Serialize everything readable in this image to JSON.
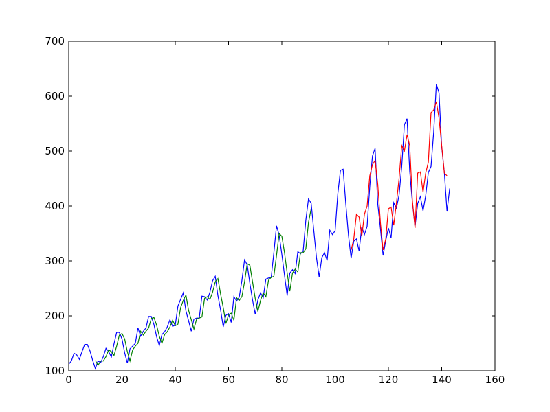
{
  "chart_data": {
    "type": "line",
    "xlim": [
      0,
      160
    ],
    "xticks": [
      0,
      20,
      40,
      60,
      80,
      100,
      120,
      140,
      160
    ],
    "ylim": [
      100,
      700
    ],
    "yticks": [
      100,
      200,
      300,
      400,
      500,
      600,
      700
    ],
    "series": [
      {
        "color": "#0000ff",
        "x": [
          0,
          1,
          2,
          3,
          4,
          5,
          6,
          7,
          8,
          9,
          10,
          11,
          12,
          13,
          14,
          15,
          16,
          17,
          18,
          19,
          20,
          21,
          22,
          23,
          24,
          25,
          26,
          27,
          28,
          29,
          30,
          31,
          32,
          33,
          34,
          35,
          36,
          37,
          38,
          39,
          40,
          41,
          42,
          43,
          44,
          45,
          46,
          47,
          48,
          49,
          50,
          51,
          52,
          53,
          54,
          55,
          56,
          57,
          58,
          59,
          60,
          61,
          62,
          63,
          64,
          65,
          66,
          67,
          68,
          69,
          70,
          71,
          72,
          73,
          74,
          75,
          76,
          77,
          78,
          79,
          80,
          81,
          82,
          83,
          84,
          85,
          86,
          87,
          88,
          89,
          90,
          91,
          92,
          93,
          94,
          95,
          96,
          97,
          98,
          99,
          100,
          101,
          102,
          103,
          104,
          105,
          106,
          107,
          108,
          109,
          110,
          111,
          112,
          113,
          114,
          115,
          116,
          117,
          118,
          119,
          120,
          121,
          122,
          123,
          124,
          125,
          126,
          127,
          128,
          129,
          130,
          131,
          132,
          133,
          134,
          135,
          136,
          137,
          138,
          139,
          140,
          141,
          142,
          143
        ],
        "values": [
          112,
          118,
          132,
          129,
          121,
          135,
          148,
          148,
          136,
          119,
          104,
          118,
          115,
          126,
          141,
          135,
          125,
          149,
          170,
          170,
          158,
          133,
          114,
          140,
          145,
          150,
          178,
          163,
          172,
          178,
          199,
          199,
          184,
          162,
          146,
          166,
          171,
          180,
          193,
          181,
          183,
          218,
          230,
          242,
          209,
          191,
          172,
          194,
          196,
          196,
          236,
          235,
          229,
          243,
          264,
          272,
          237,
          211,
          180,
          201,
          204,
          188,
          235,
          227,
          234,
          264,
          302,
          293,
          259,
          229,
          203,
          229,
          242,
          233,
          267,
          269,
          270,
          315,
          364,
          347,
          312,
          274,
          237,
          278,
          284,
          277,
          317,
          313,
          318,
          374,
          413,
          405,
          355,
          306,
          271,
          306,
          315,
          301,
          356,
          348,
          355,
          422,
          465,
          467,
          404,
          347,
          305,
          336,
          340,
          318,
          362,
          348,
          363,
          435,
          491,
          505,
          404,
          359,
          310,
          337,
          360,
          342,
          406,
          396,
          420,
          472,
          548,
          559,
          463,
          407,
          362,
          405,
          417,
          391,
          419,
          461,
          472,
          535,
          622,
          606,
          508,
          461,
          390,
          432
        ]
      },
      {
        "color": "#007f00",
        "x": [
          10,
          11,
          12,
          13,
          14,
          15,
          16,
          17,
          18,
          19,
          20,
          21,
          22,
          23,
          24,
          25,
          26,
          27,
          28,
          29,
          30,
          31,
          32,
          33,
          34,
          35,
          36,
          37,
          38,
          39,
          40,
          41,
          42,
          43,
          44,
          45,
          46,
          47,
          48,
          49,
          50,
          51,
          52,
          53,
          54,
          55,
          56,
          57,
          58,
          59,
          60,
          61,
          62,
          63,
          64,
          65,
          66,
          67,
          68,
          69,
          70,
          71,
          72,
          73,
          74,
          75,
          76,
          77,
          78,
          79,
          80,
          81,
          82,
          83,
          84,
          85,
          86,
          87,
          88,
          89,
          90,
          91
        ],
        "values": [
          119,
          110,
          118,
          118,
          126,
          138,
          135,
          128,
          145,
          165,
          168,
          158,
          135,
          118,
          138,
          145,
          150,
          172,
          165,
          172,
          178,
          195,
          197,
          183,
          163,
          150,
          166,
          171,
          180,
          192,
          182,
          185,
          215,
          228,
          238,
          210,
          193,
          176,
          194,
          196,
          198,
          232,
          235,
          230,
          243,
          262,
          268,
          240,
          215,
          186,
          202,
          205,
          192,
          233,
          228,
          235,
          262,
          295,
          292,
          262,
          232,
          208,
          228,
          242,
          235,
          265,
          270,
          272,
          310,
          350,
          345,
          315,
          278,
          245,
          278,
          285,
          280,
          315,
          315,
          322,
          370,
          395
        ]
      },
      {
        "color": "#ff0000",
        "x": [
          106,
          107,
          108,
          109,
          110,
          111,
          112,
          113,
          114,
          115,
          116,
          117,
          118,
          119,
          120,
          121,
          122,
          123,
          124,
          125,
          126,
          127,
          128,
          129,
          130,
          131,
          132,
          133,
          134,
          135,
          136,
          137,
          138,
          139,
          140,
          141,
          142
        ],
        "values": [
          320,
          340,
          385,
          380,
          345,
          385,
          400,
          455,
          475,
          483,
          440,
          370,
          320,
          340,
          395,
          398,
          365,
          405,
          450,
          510,
          500,
          530,
          510,
          410,
          360,
          460,
          462,
          425,
          460,
          480,
          570,
          575,
          590,
          560,
          510,
          460,
          455
        ]
      }
    ]
  }
}
